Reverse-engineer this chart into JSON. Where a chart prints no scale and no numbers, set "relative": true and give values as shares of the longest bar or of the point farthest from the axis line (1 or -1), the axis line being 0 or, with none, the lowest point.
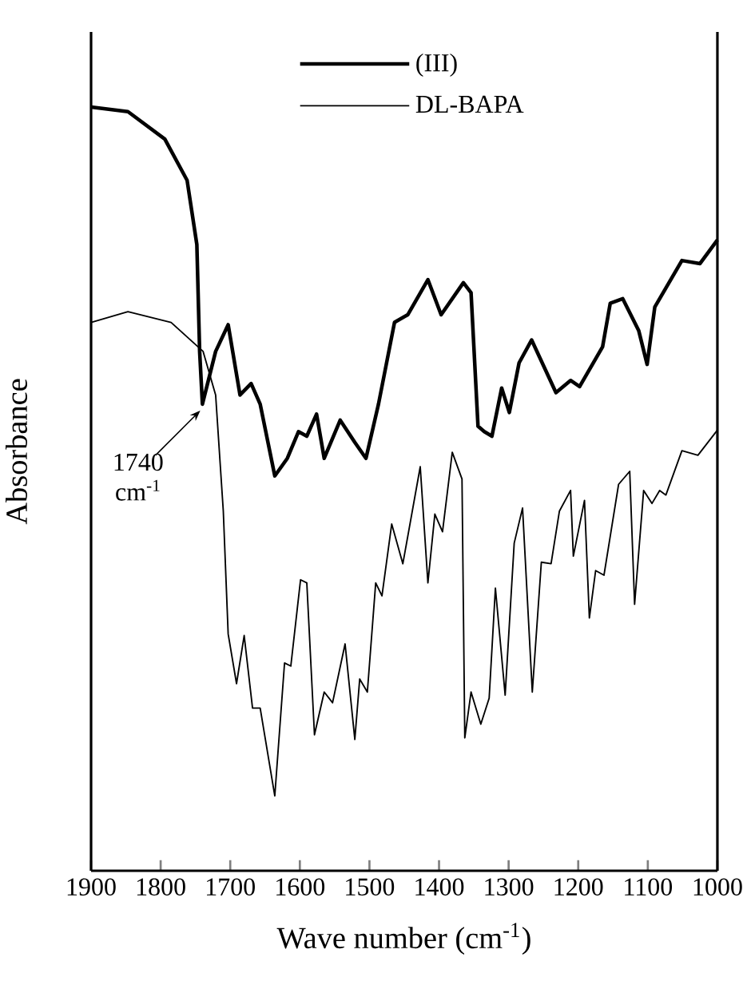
{
  "chart_data": {
    "type": "line",
    "xlabel": "Wave number (cm$^{-1}$)",
    "ylabel": "Absorbance",
    "relative": true,
    "xlim": [
      1900,
      1000
    ],
    "xticks": [
      1900,
      1800,
      1700,
      1600,
      1500,
      1400,
      1300,
      1200,
      1100,
      1000
    ],
    "legend": "top",
    "annotations": [
      {
        "text": "1740 cm$^{-1}$",
        "x": 1740,
        "y": 0.611
      }
    ],
    "series": [
      {
        "name": "(III)",
        "color": "#000000",
        "x": [
          1900,
          1847,
          1794,
          1762,
          1748,
          1744,
          1740,
          1721,
          1703,
          1686,
          1670,
          1657,
          1636,
          1618,
          1602,
          1590,
          1576,
          1565,
          1542,
          1521,
          1505,
          1487,
          1464,
          1445,
          1416,
          1397,
          1365,
          1354,
          1344,
          1335,
          1324,
          1310,
          1299,
          1285,
          1267,
          1232,
          1211,
          1198,
          1165,
          1154,
          1136,
          1113,
          1101,
          1090,
          1051,
          1025,
          1000
        ],
        "values": [
          1.0,
          0.994,
          0.958,
          0.904,
          0.82,
          0.68,
          0.611,
          0.68,
          0.715,
          0.623,
          0.638,
          0.611,
          0.517,
          0.54,
          0.575,
          0.569,
          0.598,
          0.54,
          0.59,
          0.561,
          0.54,
          0.611,
          0.718,
          0.728,
          0.774,
          0.728,
          0.77,
          0.757,
          0.582,
          0.575,
          0.569,
          0.632,
          0.6,
          0.665,
          0.695,
          0.626,
          0.642,
          0.634,
          0.686,
          0.743,
          0.749,
          0.707,
          0.663,
          0.738,
          0.799,
          0.795,
          0.826
        ]
      },
      {
        "name": "DL-BAPA",
        "color": "#000000",
        "x": [
          1900,
          1847,
          1785,
          1739,
          1721,
          1710,
          1703,
          1691,
          1680,
          1668,
          1657,
          1636,
          1622,
          1613,
          1599,
          1590,
          1579,
          1565,
          1553,
          1535,
          1521,
          1514,
          1503,
          1491,
          1482,
          1468,
          1452,
          1427,
          1416,
          1406,
          1395,
          1381,
          1367,
          1363,
          1354,
          1340,
          1328,
          1319,
          1305,
          1292,
          1280,
          1266,
          1253,
          1239,
          1227,
          1211,
          1207,
          1191,
          1184,
          1175,
          1163,
          1142,
          1126,
          1119,
          1106,
          1094,
          1083,
          1074,
          1051,
          1028,
          1000
        ],
        "values": [
          0.718,
          0.732,
          0.718,
          0.68,
          0.623,
          0.471,
          0.31,
          0.245,
          0.308,
          0.213,
          0.213,
          0.098,
          0.272,
          0.268,
          0.381,
          0.377,
          0.178,
          0.234,
          0.22,
          0.297,
          0.172,
          0.251,
          0.234,
          0.377,
          0.36,
          0.454,
          0.402,
          0.529,
          0.377,
          0.467,
          0.444,
          0.548,
          0.513,
          0.174,
          0.234,
          0.192,
          0.226,
          0.37,
          0.23,
          0.429,
          0.475,
          0.234,
          0.404,
          0.402,
          0.471,
          0.498,
          0.412,
          0.485,
          0.331,
          0.393,
          0.387,
          0.506,
          0.523,
          0.349,
          0.498,
          0.481,
          0.498,
          0.492,
          0.55,
          0.544,
          0.577
        ]
      }
    ]
  }
}
